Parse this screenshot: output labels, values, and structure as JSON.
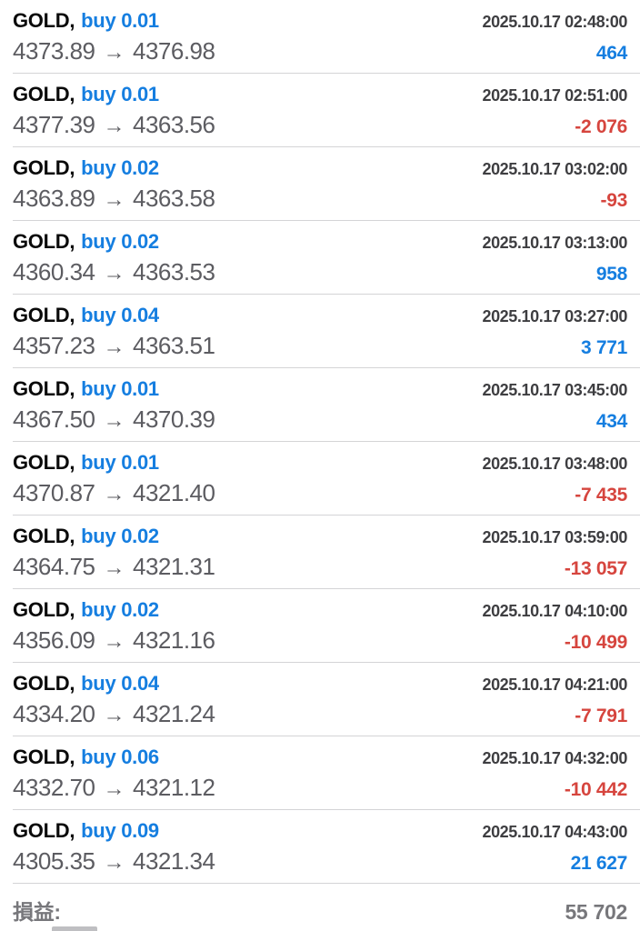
{
  "colors": {
    "buy_blue": "#157ee0",
    "profit_positive": "#157ee0",
    "profit_negative": "#d6453e"
  },
  "list": {
    "arrow": "→",
    "trades": [
      {
        "symbol": "GOLD,",
        "side": "buy 0.01",
        "time": "2025.10.17 02:48:00",
        "open": "4373.89",
        "close": "4376.98",
        "profit": "464"
      },
      {
        "symbol": "GOLD,",
        "side": "buy 0.01",
        "time": "2025.10.17 02:51:00",
        "open": "4377.39",
        "close": "4363.56",
        "profit": "-2 076"
      },
      {
        "symbol": "GOLD,",
        "side": "buy 0.02",
        "time": "2025.10.17 03:02:00",
        "open": "4363.89",
        "close": "4363.58",
        "profit": "-93"
      },
      {
        "symbol": "GOLD,",
        "side": "buy 0.02",
        "time": "2025.10.17 03:13:00",
        "open": "4360.34",
        "close": "4363.53",
        "profit": "958"
      },
      {
        "symbol": "GOLD,",
        "side": "buy 0.04",
        "time": "2025.10.17 03:27:00",
        "open": "4357.23",
        "close": "4363.51",
        "profit": "3 771"
      },
      {
        "symbol": "GOLD,",
        "side": "buy 0.01",
        "time": "2025.10.17 03:45:00",
        "open": "4367.50",
        "close": "4370.39",
        "profit": "434"
      },
      {
        "symbol": "GOLD,",
        "side": "buy 0.01",
        "time": "2025.10.17 03:48:00",
        "open": "4370.87",
        "close": "4321.40",
        "profit": "-7 435"
      },
      {
        "symbol": "GOLD,",
        "side": "buy 0.02",
        "time": "2025.10.17 03:59:00",
        "open": "4364.75",
        "close": "4321.31",
        "profit": "-13 057"
      },
      {
        "symbol": "GOLD,",
        "side": "buy 0.02",
        "time": "2025.10.17 04:10:00",
        "open": "4356.09",
        "close": "4321.16",
        "profit": "-10 499"
      },
      {
        "symbol": "GOLD,",
        "side": "buy 0.04",
        "time": "2025.10.17 04:21:00",
        "open": "4334.20",
        "close": "4321.24",
        "profit": "-7 791"
      },
      {
        "symbol": "GOLD,",
        "side": "buy 0.06",
        "time": "2025.10.17 04:32:00",
        "open": "4332.70",
        "close": "4321.12",
        "profit": "-10 442"
      },
      {
        "symbol": "GOLD,",
        "side": "buy 0.09",
        "time": "2025.10.17 04:43:00",
        "open": "4305.35",
        "close": "4321.34",
        "profit": "21 627"
      }
    ]
  },
  "summary": {
    "label": "損益:",
    "value": "55 702"
  }
}
